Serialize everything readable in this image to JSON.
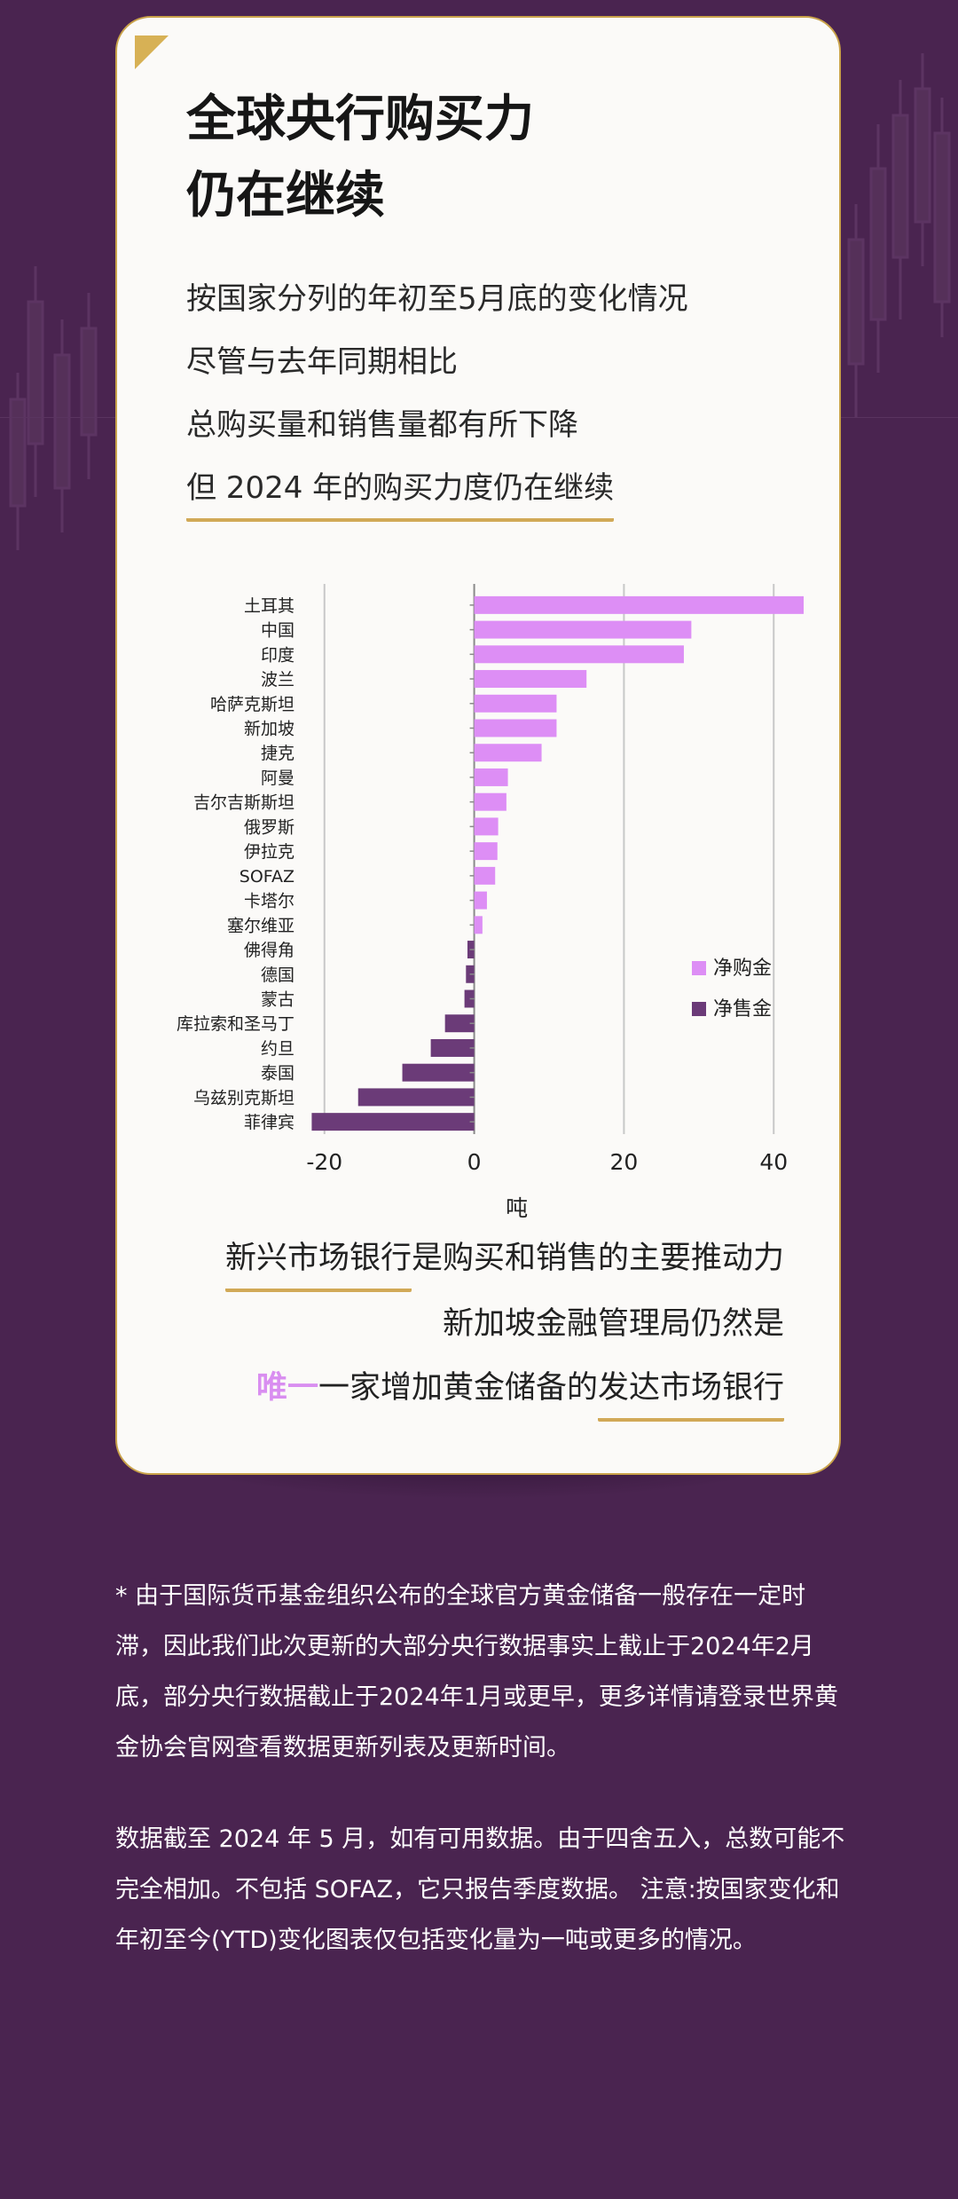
{
  "title": {
    "line1": "全球央行购买力",
    "line2": "仍在继续"
  },
  "intro": {
    "line1": "按国家分列的年初至5月底的变化情况",
    "line2": "尽管与去年同期相比",
    "line3": "总购买量和销售量都有所下降",
    "line4": "但 2024 年的购买力度仍在继续"
  },
  "chart_data": {
    "type": "bar",
    "orientation": "horizontal",
    "categories": [
      "土耳其",
      "中国",
      "印度",
      "波兰",
      "哈萨克斯坦",
      "新加坡",
      "捷克",
      "阿曼",
      "吉尔吉斯斯坦",
      "俄罗斯",
      "伊拉克",
      "SOFAZ",
      "卡塔尔",
      "塞尔维亚",
      "佛得角",
      "德国",
      "蒙古",
      "库拉索和圣马丁",
      "约旦",
      "泰国",
      "乌兹别克斯坦",
      "菲律宾"
    ],
    "values": [
      44,
      29,
      28,
      15,
      11,
      11,
      9,
      4.5,
      4.3,
      3.2,
      3.1,
      2.8,
      1.7,
      1.1,
      -0.9,
      -1.1,
      -1.3,
      -3.9,
      -5.8,
      -9.6,
      -15.5,
      -21.7
    ],
    "xlabel": "吨",
    "xlim": [
      -24,
      44
    ],
    "xticks": [
      -20,
      0,
      20,
      40
    ],
    "grid": true,
    "legend_position": "right",
    "legend": [
      {
        "label": "净购金",
        "color": "#dd8ef5"
      },
      {
        "label": "净售金",
        "color": "#6b3b78"
      }
    ]
  },
  "outro": {
    "line1_a": "新兴市场银行",
    "line1_b": "是购买和销售的主要推动力",
    "line2": "新加坡金融管理局仍然是",
    "line3_a": "唯一",
    "line3_b": "一家增加黄金储备的",
    "line3_c": "发达市场银行"
  },
  "footnotes": {
    "p1": "* 由于国际货币基金组织公布的全球官方黄金储备一般存在一定时滞，因此我们此次更新的大部分央行数据事实上截止于2024年2月底，部分央行数据截止于2024年1月或更早，更多详情请登录世界黄金协会官网查看数据更新列表及更新时间。",
    "p2": "数据截至 2024 年 5 月，如有可用数据。由于四舍五入，总数可能不完全相加。不包括 SOFAZ，它只报告季度数据。 注意:按国家变化和年初至今(YTD)变化图表仅包括变化量为一吨或更多的情况。"
  },
  "colors": {
    "background": "#4a2450",
    "accent_gold": "#d1a957",
    "highlight_pink": "#d98ef0"
  }
}
